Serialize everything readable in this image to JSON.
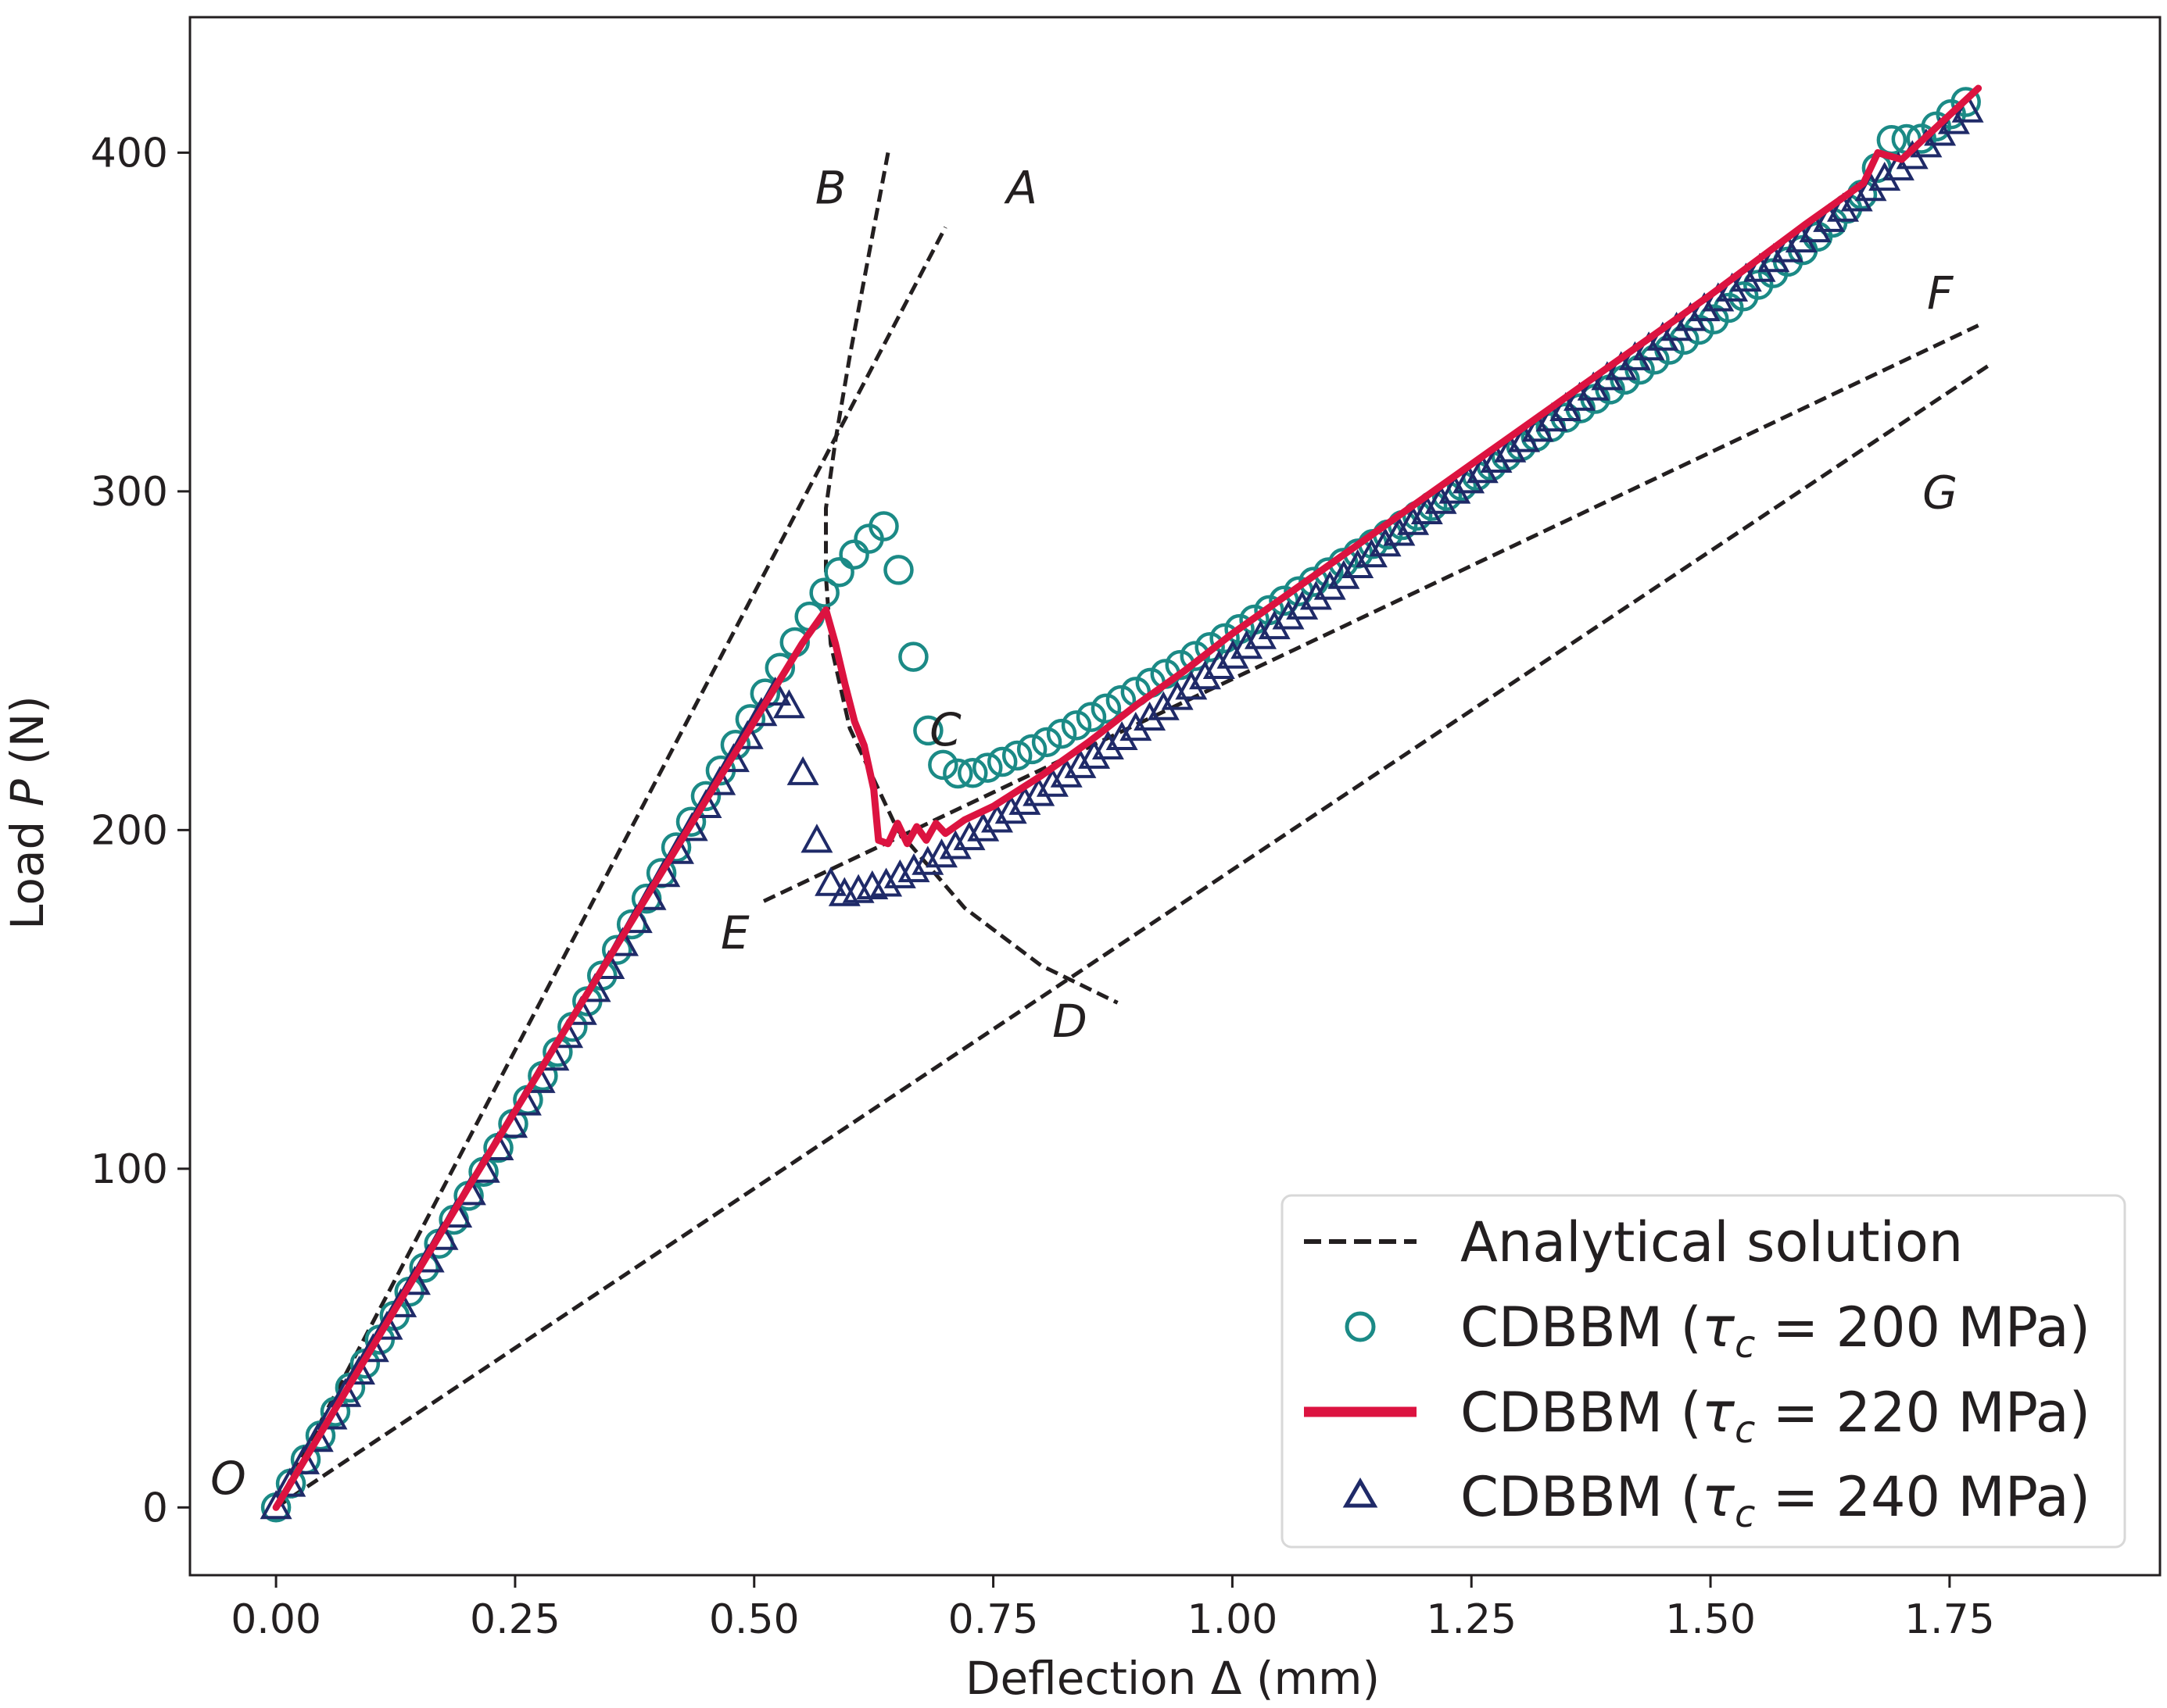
{
  "chart_data": {
    "type": "line",
    "title": "",
    "xlabel": "Deflection Δ (mm)",
    "ylabel_parts": [
      "Load ",
      "P",
      " (N)"
    ],
    "xlim": [
      -0.09,
      1.97
    ],
    "ylim": [
      -20,
      440
    ],
    "xticks": [
      0.0,
      0.25,
      0.5,
      0.75,
      1.0,
      1.25,
      1.5,
      1.75
    ],
    "xtick_labels": [
      "0.00",
      "0.25",
      "0.50",
      "0.75",
      "1.00",
      "1.25",
      "1.50",
      "1.75"
    ],
    "yticks": [
      0,
      100,
      200,
      300,
      400
    ],
    "ytick_labels": [
      "0",
      "100",
      "200",
      "300",
      "400"
    ],
    "grid": false,
    "legend_position": "bottom-right",
    "legend": [
      {
        "label": "Analytical solution",
        "style": "dashed",
        "color": "#231f20"
      },
      {
        "label": "CDBBM (τc = 200 MPa)",
        "prefix": "CDBBM (",
        "symbol": "τ",
        "sub": "c",
        "suffix": " = 200 MPa)",
        "style": "circle",
        "color": "#1b8a86"
      },
      {
        "label": "CDBBM (τc = 220 MPa)",
        "prefix": "CDBBM (",
        "symbol": "τ",
        "sub": "c",
        "suffix": " = 220 MPa)",
        "style": "line",
        "color": "#dc1340"
      },
      {
        "label": "CDBBM (τc = 240 MPa)",
        "prefix": "CDBBM (",
        "symbol": "τ",
        "sub": "c",
        "suffix": " = 240 MPa)",
        "style": "triangle",
        "color": "#1f2a68"
      }
    ],
    "analytical_curves": [
      {
        "name": "OA",
        "x": [
          0.0,
          0.7
        ],
        "y": [
          0,
          378
        ]
      },
      {
        "name": "OG",
        "x": [
          0.0,
          1.79
        ],
        "y": [
          0,
          337
        ]
      },
      {
        "name": "EF",
        "x": [
          0.51,
          1.78
        ],
        "y": [
          179,
          349
        ]
      },
      {
        "name": "B-C-D",
        "x": [
          0.64,
          0.62,
          0.6,
          0.585,
          0.575,
          0.575,
          0.58,
          0.6,
          0.65,
          0.72,
          0.8,
          0.88
        ],
        "y": [
          400,
          370,
          340,
          315,
          295,
          275,
          255,
          230,
          200,
          177,
          160,
          149
        ]
      }
    ],
    "annotations": [
      {
        "text": "A",
        "x": 0.78,
        "y": 385
      },
      {
        "text": "B",
        "x": 0.58,
        "y": 385
      },
      {
        "text": "C",
        "x": 0.7,
        "y": 225
      },
      {
        "text": "D",
        "x": 0.83,
        "y": 139
      },
      {
        "text": "E",
        "x": 0.48,
        "y": 165
      },
      {
        "text": "F",
        "x": 1.74,
        "y": 354
      },
      {
        "text": "G",
        "x": 1.74,
        "y": 295
      },
      {
        "text": "O",
        "x": -0.05,
        "y": 4
      }
    ],
    "series": [
      {
        "name": "CDBBM (τc = 200 MPa)",
        "marker": "circle",
        "color": "#1b8a86",
        "key_x": [
          0.0,
          0.3,
          0.56,
          0.58,
          0.6,
          0.62,
          0.635,
          0.645,
          0.655,
          0.665,
          0.675,
          0.69,
          0.7,
          0.72,
          0.75,
          0.8,
          0.85,
          0.9,
          1.0,
          1.1,
          1.2,
          1.3,
          1.4,
          1.5,
          1.6,
          1.66,
          1.69,
          1.72,
          1.78
        ],
        "key_y": [
          0,
          137,
          264,
          273,
          280,
          286,
          290,
          284,
          272,
          254,
          235,
          223,
          218,
          216,
          219,
          225,
          233,
          241,
          258,
          276,
          294,
          313,
          331,
          350,
          372,
          388,
          404,
          404,
          418
        ],
        "sample_step": 0.0155
      },
      {
        "name": "CDBBM (τc = 220 MPa)",
        "marker": "line",
        "color": "#dc1340",
        "x": [
          0.0,
          0.1,
          0.2,
          0.3,
          0.4,
          0.5,
          0.55,
          0.575,
          0.585,
          0.595,
          0.605,
          0.615,
          0.625,
          0.63,
          0.64,
          0.65,
          0.66,
          0.67,
          0.68,
          0.69,
          0.7,
          0.72,
          0.75,
          0.8,
          0.85,
          0.9,
          0.95,
          1.0,
          1.1,
          1.2,
          1.3,
          1.4,
          1.5,
          1.6,
          1.66,
          1.675,
          1.7,
          1.78
        ],
        "y": [
          0,
          47,
          94,
          140,
          186,
          232,
          255,
          265,
          255,
          243,
          232,
          225,
          212,
          197,
          196,
          202,
          196,
          201,
          197,
          202,
          199,
          203,
          207,
          216,
          226,
          237,
          247,
          258,
          278,
          298,
          318,
          338,
          358,
          379,
          391,
          400,
          398,
          419
        ]
      },
      {
        "name": "CDBBM (τc = 240 MPa)",
        "marker": "triangle",
        "color": "#1f2a68",
        "key_x": [
          0.0,
          0.3,
          0.52,
          0.53,
          0.54,
          0.55,
          0.56,
          0.57,
          0.58,
          0.59,
          0.6,
          0.61,
          0.62,
          0.63,
          0.64,
          0.65,
          0.66,
          0.7,
          0.8,
          0.9,
          1.0,
          1.1,
          1.2,
          1.3,
          1.4,
          1.5,
          1.6,
          1.7,
          1.78
        ],
        "key_y": [
          0,
          137,
          240,
          241,
          234,
          218,
          205,
          190,
          184,
          181,
          181,
          182,
          183,
          183,
          184,
          186,
          187,
          193,
          211,
          230,
          251,
          271,
          293,
          314,
          335,
          355,
          375,
          396,
          415
        ],
        "sample_step": 0.0145
      }
    ]
  }
}
